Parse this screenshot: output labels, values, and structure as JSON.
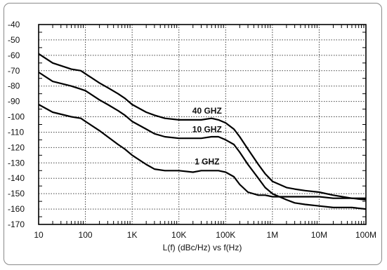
{
  "chart_data": {
    "type": "line",
    "title": "",
    "xlabel": "L(f) (dBc/Hz) vs f(Hz)",
    "ylabel": "",
    "x_scale": "log",
    "xlim": [
      10,
      100000000
    ],
    "ylim": [
      -170,
      -40
    ],
    "grid": true,
    "x_ticks": [
      10,
      100,
      1000,
      10000,
      100000,
      1000000,
      10000000,
      100000000
    ],
    "x_tick_labels": [
      "10",
      "100",
      "1K",
      "10K",
      "100K",
      "1M",
      "10M",
      "100M"
    ],
    "y_ticks": [
      -40,
      -50,
      -60,
      -70,
      -80,
      -90,
      -100,
      -110,
      -120,
      -130,
      -140,
      -150,
      -160,
      -170
    ],
    "y_tick_labels": [
      "-40",
      "-50",
      "-60",
      "-70",
      "-80",
      "-90",
      "-100",
      "-110",
      "-120",
      "-130",
      "-140",
      "-150",
      "-160",
      "-170"
    ],
    "series": [
      {
        "name": "40 GHZ",
        "x": [
          10,
          20,
          50,
          80,
          100,
          200,
          300,
          500,
          700,
          1000,
          2000,
          3000,
          5000,
          10000,
          20000,
          30000,
          50000,
          70000,
          100000,
          150000,
          200000,
          300000,
          500000,
          700000,
          1000000,
          2000000,
          3000000,
          5000000,
          10000000,
          20000000,
          50000000,
          100000000
        ],
        "y": [
          -59,
          -65,
          -69,
          -70,
          -72,
          -78,
          -81,
          -85,
          -88,
          -92,
          -97,
          -99,
          -101,
          -102,
          -102,
          -102,
          -101,
          -102,
          -104,
          -108,
          -113,
          -121,
          -131,
          -137,
          -142,
          -146,
          -147,
          -148,
          -149,
          -151,
          -153,
          -154
        ]
      },
      {
        "name": "10 GHZ",
        "x": [
          10,
          20,
          50,
          80,
          100,
          200,
          300,
          500,
          700,
          1000,
          2000,
          3000,
          5000,
          10000,
          20000,
          30000,
          50000,
          70000,
          100000,
          150000,
          200000,
          300000,
          500000,
          700000,
          1000000,
          2000000,
          3000000,
          5000000,
          10000000,
          20000000,
          50000000,
          100000000
        ],
        "y": [
          -71,
          -77,
          -80,
          -82,
          -83,
          -89,
          -92,
          -96,
          -99,
          -103,
          -108,
          -111,
          -113,
          -114,
          -114,
          -114,
          -113,
          -113,
          -115,
          -118,
          -123,
          -131,
          -140,
          -146,
          -150,
          -154,
          -156,
          -157,
          -158,
          -159,
          -159,
          -160
        ]
      },
      {
        "name": "1 GHZ",
        "x": [
          10,
          20,
          50,
          80,
          100,
          200,
          300,
          500,
          700,
          1000,
          2000,
          3000,
          5000,
          10000,
          20000,
          30000,
          50000,
          70000,
          100000,
          150000,
          200000,
          300000,
          500000,
          700000,
          1000000,
          2000000,
          3000000,
          5000000,
          10000000,
          20000000,
          50000000,
          100000000
        ],
        "y": [
          -92,
          -97,
          -100,
          -101,
          -103,
          -109,
          -113,
          -118,
          -121,
          -125,
          -131,
          -134,
          -135,
          -135,
          -136,
          -135,
          -135,
          -135,
          -136,
          -139,
          -144,
          -149,
          -151,
          -151,
          -152,
          -152,
          -152,
          -152,
          -152,
          -153,
          -153,
          -153
        ]
      }
    ],
    "curve_labels": [
      {
        "text": "40 GHZ",
        "x": 40000,
        "y": -98
      },
      {
        "text": "10 GHZ",
        "x": 40000,
        "y": -110
      },
      {
        "text": "1 GHZ",
        "x": 40000,
        "y": -131
      }
    ]
  }
}
